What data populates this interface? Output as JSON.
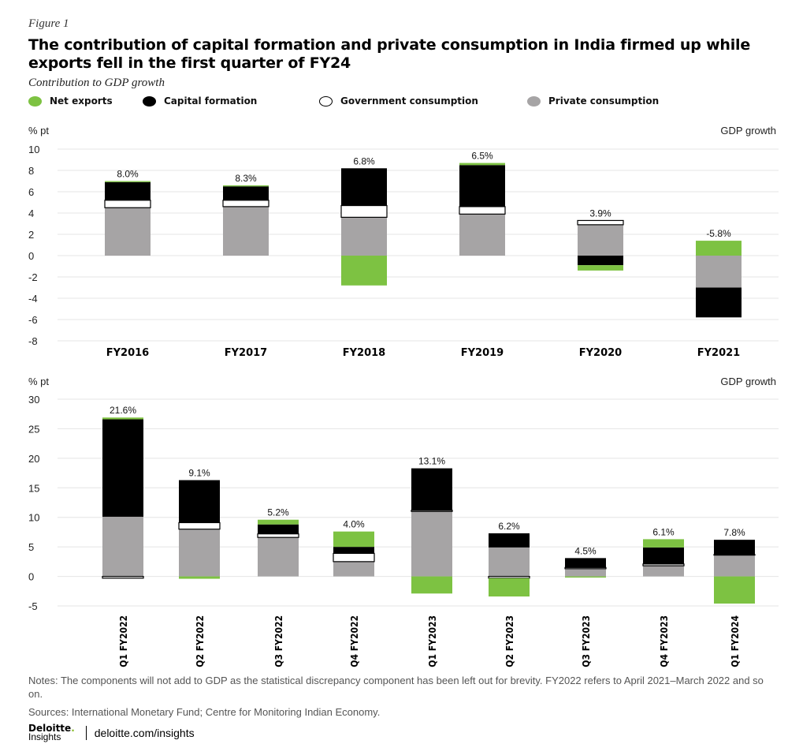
{
  "figure_label": "Figure 1",
  "title": "The contribution of capital formation and private consumption in India firmed up while exports fell in the first quarter of FY24",
  "subtitle": "Contribution to GDP growth",
  "legend": [
    {
      "key": "net_exports",
      "label": "Net exports"
    },
    {
      "key": "capital_formation",
      "label": "Capital formation"
    },
    {
      "key": "government_consumption",
      "label": "Government consumption"
    },
    {
      "key": "private_consumption",
      "label": "Private consumption"
    }
  ],
  "colors": {
    "net_exports": "#7dc242",
    "capital_formation": "#000000",
    "government_consumption": "#ffffff",
    "private_consumption": "#a6a4a5",
    "axis_text": "#222222",
    "gridline": "#e4e4e4"
  },
  "chart_data": [
    {
      "type": "bar",
      "stacked": true,
      "ylabel": "% pt",
      "right_label": "GDP growth",
      "ylim": [
        -8,
        10
      ],
      "yticks": [
        10,
        8,
        6,
        4,
        2,
        0,
        -2,
        -4,
        -6,
        -8
      ],
      "grid": "horizontal",
      "categories": [
        "FY2016",
        "FY2017",
        "FY2018",
        "FY2019",
        "FY2020",
        "FY2021"
      ],
      "growth_labels": [
        "8.0%",
        "8.3%",
        "6.8%",
        "6.5%",
        "3.9%",
        "-5.8%"
      ],
      "series": [
        {
          "key": "private_consumption",
          "name": "Private consumption",
          "values": [
            4.5,
            4.6,
            3.6,
            3.9,
            2.9,
            -3.0
          ]
        },
        {
          "key": "government_consumption",
          "name": "Government consumption",
          "values": [
            0.7,
            0.6,
            1.1,
            0.7,
            0.4,
            0.0
          ]
        },
        {
          "key": "capital_formation",
          "name": "Capital formation",
          "values": [
            1.7,
            1.3,
            3.5,
            3.9,
            -0.9,
            -2.8
          ]
        },
        {
          "key": "net_exports",
          "name": "Net exports",
          "values": [
            0.1,
            0.1,
            -2.8,
            0.2,
            -0.5,
            1.4
          ]
        }
      ]
    },
    {
      "type": "bar",
      "stacked": true,
      "ylabel": "% pt",
      "right_label": "GDP growth",
      "ylim": [
        -5,
        30
      ],
      "yticks": [
        30,
        25,
        20,
        15,
        10,
        5,
        0,
        -5
      ],
      "grid": "horizontal",
      "categories": [
        "Q1 FY2022",
        "Q2 FY2022",
        "Q3 FY2022",
        "Q4 FY2022",
        "Q1 FY2023",
        "Q2 FY2023",
        "Q3 FY2023",
        "Q4 FY2023",
        "Q1 FY2024"
      ],
      "growth_labels": [
        "21.6%",
        "9.1%",
        "5.2%",
        "4.0%",
        "13.1%",
        "6.2%",
        "4.5%",
        "6.1%",
        "7.8%"
      ],
      "series": [
        {
          "key": "private_consumption",
          "name": "Private consumption",
          "values": [
            10.1,
            8.0,
            6.6,
            2.5,
            11.0,
            4.9,
            1.3,
            1.8,
            3.6
          ]
        },
        {
          "key": "government_consumption",
          "name": "Government consumption",
          "values": [
            -0.3,
            1.1,
            0.6,
            1.4,
            0.2,
            -0.3,
            0.2,
            0.3,
            0.1
          ]
        },
        {
          "key": "capital_formation",
          "name": "Capital formation",
          "values": [
            16.5,
            7.2,
            1.6,
            1.1,
            7.1,
            2.4,
            1.6,
            2.8,
            2.5
          ]
        },
        {
          "key": "net_exports",
          "name": "Net exports",
          "values": [
            0.3,
            -0.4,
            0.8,
            2.6,
            -2.9,
            -3.1,
            -0.2,
            1.4,
            -4.6
          ]
        }
      ]
    }
  ],
  "notes": "Notes: The components will not add to GDP as the statistical discrepancy component has been left out for brevity. FY2022 refers to April 2021–March 2022 and so on.",
  "sources": "Sources: International Monetary Fund; Centre for Monitoring Indian Economy.",
  "brand": {
    "name": "Deloitte",
    "dot": ".",
    "sub": "Insights",
    "url": "deloitte.com/insights"
  }
}
